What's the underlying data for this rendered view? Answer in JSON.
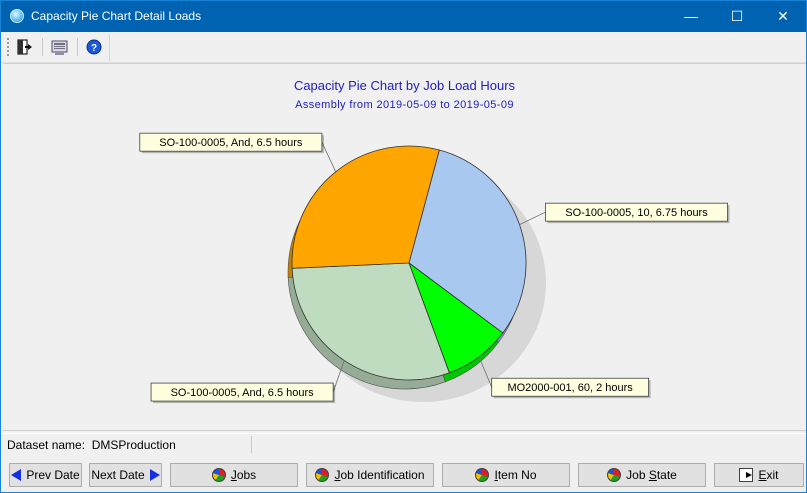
{
  "window": {
    "title": "Capacity Pie Chart Detail Loads",
    "controls": {
      "minimize": "—",
      "maximize": "☐",
      "close": "✕"
    }
  },
  "toolbar": {
    "buttons": [
      {
        "icon": "exit-door-icon"
      },
      {
        "icon": "print-preview-icon"
      },
      {
        "icon": "help-icon"
      }
    ]
  },
  "chart_data": {
    "type": "pie",
    "title": "Capacity Pie Chart by Job Load Hours",
    "subtitle": "Assembly from 2019-05-09 to 2019-05-09",
    "slices": [
      {
        "label": "SO-100-0005, 10, 6.75 hours",
        "value": 6.75,
        "color": "#a8c8f0"
      },
      {
        "label": "MO2000-001, 60, 2 hours",
        "value": 2,
        "color": "#00ff00"
      },
      {
        "label": "SO-100-0005, And, 6.5 hours",
        "value": 6.5,
        "color": "#c0dcc0"
      },
      {
        "label": "SO-100-0005, And, 6.5 hours",
        "value": 6.5,
        "color": "#ffa500"
      }
    ]
  },
  "status": {
    "dataset_label": "Dataset name:",
    "dataset_value": "DMSProduction"
  },
  "buttons": {
    "prev": "Prev Date",
    "next": "Next Date",
    "jobs_pre": "",
    "jobs_u": "J",
    "jobs_post": "obs",
    "jobid_pre": "",
    "jobid_u": "J",
    "jobid_post": "ob Identification",
    "item_pre": "",
    "item_u": "I",
    "item_post": "tem No",
    "state_pre": "Job ",
    "state_u": "S",
    "state_post": "tate",
    "exit_pre": "",
    "exit_u": "E",
    "exit_post": "xit"
  }
}
